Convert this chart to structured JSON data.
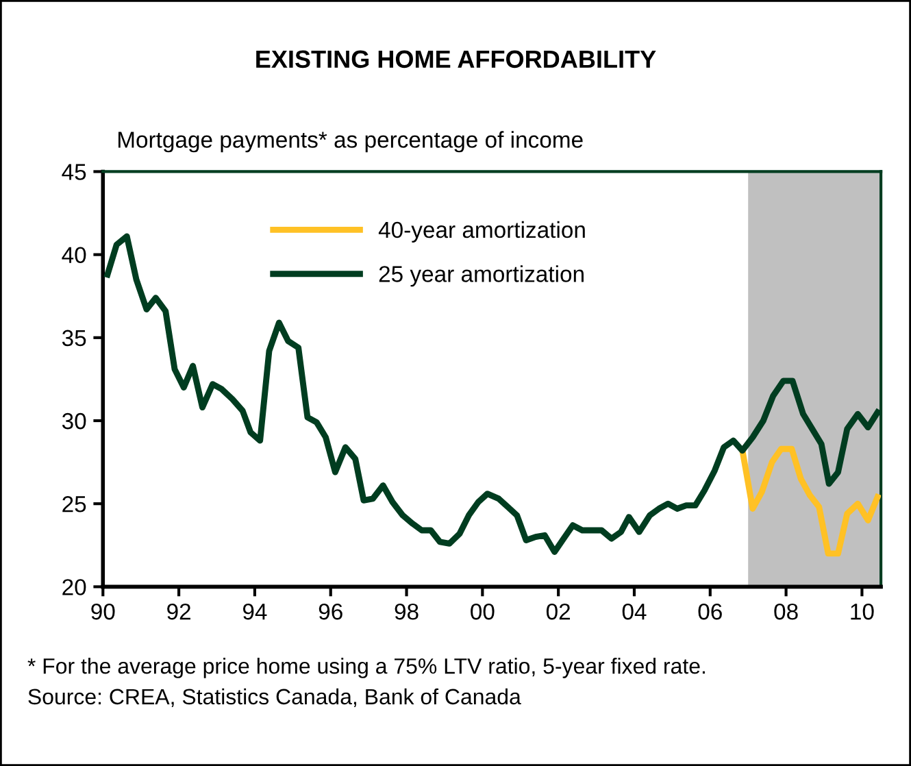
{
  "chart_data": {
    "type": "line",
    "title": "EXISTING HOME AFFORDABILITY",
    "ylabel": "Mortgage payments* as percentage of income",
    "series": [
      {
        "name": "40-year amortization",
        "color": "#ffc125",
        "x": [
          2006.85,
          2007.12,
          2007.36,
          2007.63,
          2007.87,
          2008.15,
          2008.39,
          2008.63,
          2008.87,
          2009.11,
          2009.37,
          2009.61,
          2009.89,
          2010.16,
          2010.41
        ],
        "values": [
          28.2,
          24.7,
          25.7,
          27.5,
          28.3,
          28.3,
          26.5,
          25.5,
          24.8,
          22.0,
          22.0,
          24.4,
          25.0,
          24.0,
          25.4
        ]
      },
      {
        "name": "25 year amortization",
        "color": "#003d20",
        "x": [
          1990.12,
          1990.36,
          1990.63,
          1990.88,
          1991.15,
          1991.39,
          1991.65,
          1991.89,
          1992.13,
          1992.37,
          1992.62,
          1992.89,
          1993.13,
          1993.41,
          1993.68,
          1993.89,
          1994.14,
          1994.38,
          1994.64,
          1994.88,
          1995.15,
          1995.39,
          1995.63,
          1995.87,
          1996.12,
          1996.39,
          1996.65,
          1996.87,
          1997.11,
          1997.38,
          1997.63,
          1997.9,
          1998.16,
          1998.4,
          1998.64,
          1998.88,
          1999.13,
          1999.4,
          1999.64,
          1999.89,
          2000.13,
          2000.43,
          2000.67,
          2000.91,
          2001.15,
          2001.4,
          2001.64,
          2001.9,
          2002.14,
          2002.38,
          2002.63,
          2002.9,
          2003.14,
          2003.4,
          2003.65,
          2003.86,
          2004.13,
          2004.41,
          2004.65,
          2004.89,
          2005.13,
          2005.37,
          2005.61,
          2005.85,
          2006.12,
          2006.36,
          2006.61,
          2006.85,
          2007.12,
          2007.4,
          2007.66,
          2007.93,
          2008.17,
          2008.45,
          2008.69,
          2008.93,
          2009.13,
          2009.37,
          2009.61,
          2009.89,
          2010.16,
          2010.41
        ],
        "values": [
          38.8,
          40.6,
          41.1,
          38.5,
          36.7,
          37.4,
          36.6,
          33.1,
          32.0,
          33.3,
          30.8,
          32.2,
          31.9,
          31.3,
          30.6,
          29.3,
          28.8,
          34.2,
          35.9,
          34.8,
          34.4,
          30.2,
          29.9,
          29.0,
          26.9,
          28.4,
          27.7,
          25.2,
          25.3,
          26.1,
          25.1,
          24.3,
          23.8,
          23.4,
          23.4,
          22.7,
          22.6,
          23.2,
          24.3,
          25.1,
          25.6,
          25.3,
          24.8,
          24.3,
          22.8,
          23.0,
          23.1,
          22.1,
          22.9,
          23.7,
          23.4,
          23.4,
          23.4,
          22.9,
          23.3,
          24.2,
          23.3,
          24.3,
          24.7,
          25.0,
          24.7,
          24.9,
          24.9,
          25.8,
          27.0,
          28.4,
          28.8,
          28.2,
          29.0,
          30.0,
          31.5,
          32.4,
          32.4,
          30.4,
          29.5,
          28.6,
          26.2,
          26.9,
          29.5,
          30.4,
          29.6,
          30.5
        ]
      }
    ],
    "xlim": [
      1990,
      2010.5
    ],
    "xticks": [
      {
        "value": 1990,
        "label": "90"
      },
      {
        "value": 1992,
        "label": "92"
      },
      {
        "value": 1994,
        "label": "94"
      },
      {
        "value": 1996,
        "label": "96"
      },
      {
        "value": 1998,
        "label": "98"
      },
      {
        "value": 2000,
        "label": "00"
      },
      {
        "value": 2002,
        "label": "02"
      },
      {
        "value": 2004,
        "label": "04"
      },
      {
        "value": 2006,
        "label": "06"
      },
      {
        "value": 2008,
        "label": "08"
      },
      {
        "value": 2010,
        "label": "10"
      }
    ],
    "ylim": [
      20,
      45
    ],
    "yticks": [
      20,
      25,
      30,
      35,
      40,
      45
    ],
    "bands": [
      {
        "axis": "x",
        "from": 2007,
        "to": 2010.5,
        "color": "#c0c0c0"
      }
    ],
    "legend": "top",
    "grid": false,
    "marker": "none",
    "line_style": "solid",
    "annotations": [
      "* For the average price home using a 75% LTV ratio, 5-year fixed rate.",
      "Source: CREA, Statistics Canada, Bank of Canada"
    ]
  }
}
